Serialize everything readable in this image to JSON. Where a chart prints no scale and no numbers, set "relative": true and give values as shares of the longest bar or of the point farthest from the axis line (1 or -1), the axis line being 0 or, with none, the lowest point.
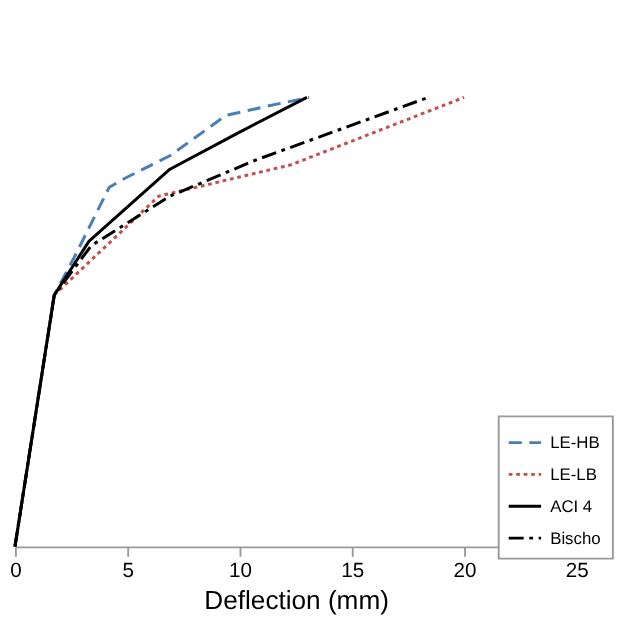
{
  "chart_data": {
    "type": "line",
    "xlabel": "Deflection (mm)",
    "xlim": [
      0,
      25
    ],
    "xticks": [
      0,
      5,
      10,
      15,
      20,
      25
    ],
    "relative": true,
    "legend": "right",
    "grid": false,
    "series": [
      {
        "name": "LE-HB",
        "color": "#4a7fb5",
        "line_style": "dashed",
        "x": [
          0,
          1.75,
          2.6,
          4.2,
          4.9,
          6.9,
          9.4,
          11.2,
          13.1
        ],
        "values": [
          0,
          0.56,
          0.64,
          0.8,
          0.82,
          0.87,
          0.96,
          0.98,
          1.0
        ]
      },
      {
        "name": "LE-LB",
        "color": "#c0504d",
        "line_style": "dotted",
        "x": [
          0,
          1.75,
          6.4,
          12.3,
          20.0
        ],
        "values": [
          0,
          0.56,
          0.78,
          0.85,
          1.0
        ]
      },
      {
        "name": "ACI 4",
        "color": "#000000",
        "line_style": "solid",
        "x": [
          0,
          1.75,
          3.3,
          6.9,
          9.9,
          13.0
        ],
        "values": [
          0,
          0.56,
          0.68,
          0.84,
          0.92,
          1.0
        ]
      },
      {
        "name": "Bischo",
        "color": "#000000",
        "line_style": "dashdot",
        "x": [
          0,
          1.75,
          3.4,
          6.9,
          10.7,
          18.4
        ],
        "values": [
          0,
          0.56,
          0.67,
          0.78,
          0.86,
          1.0
        ]
      }
    ]
  }
}
